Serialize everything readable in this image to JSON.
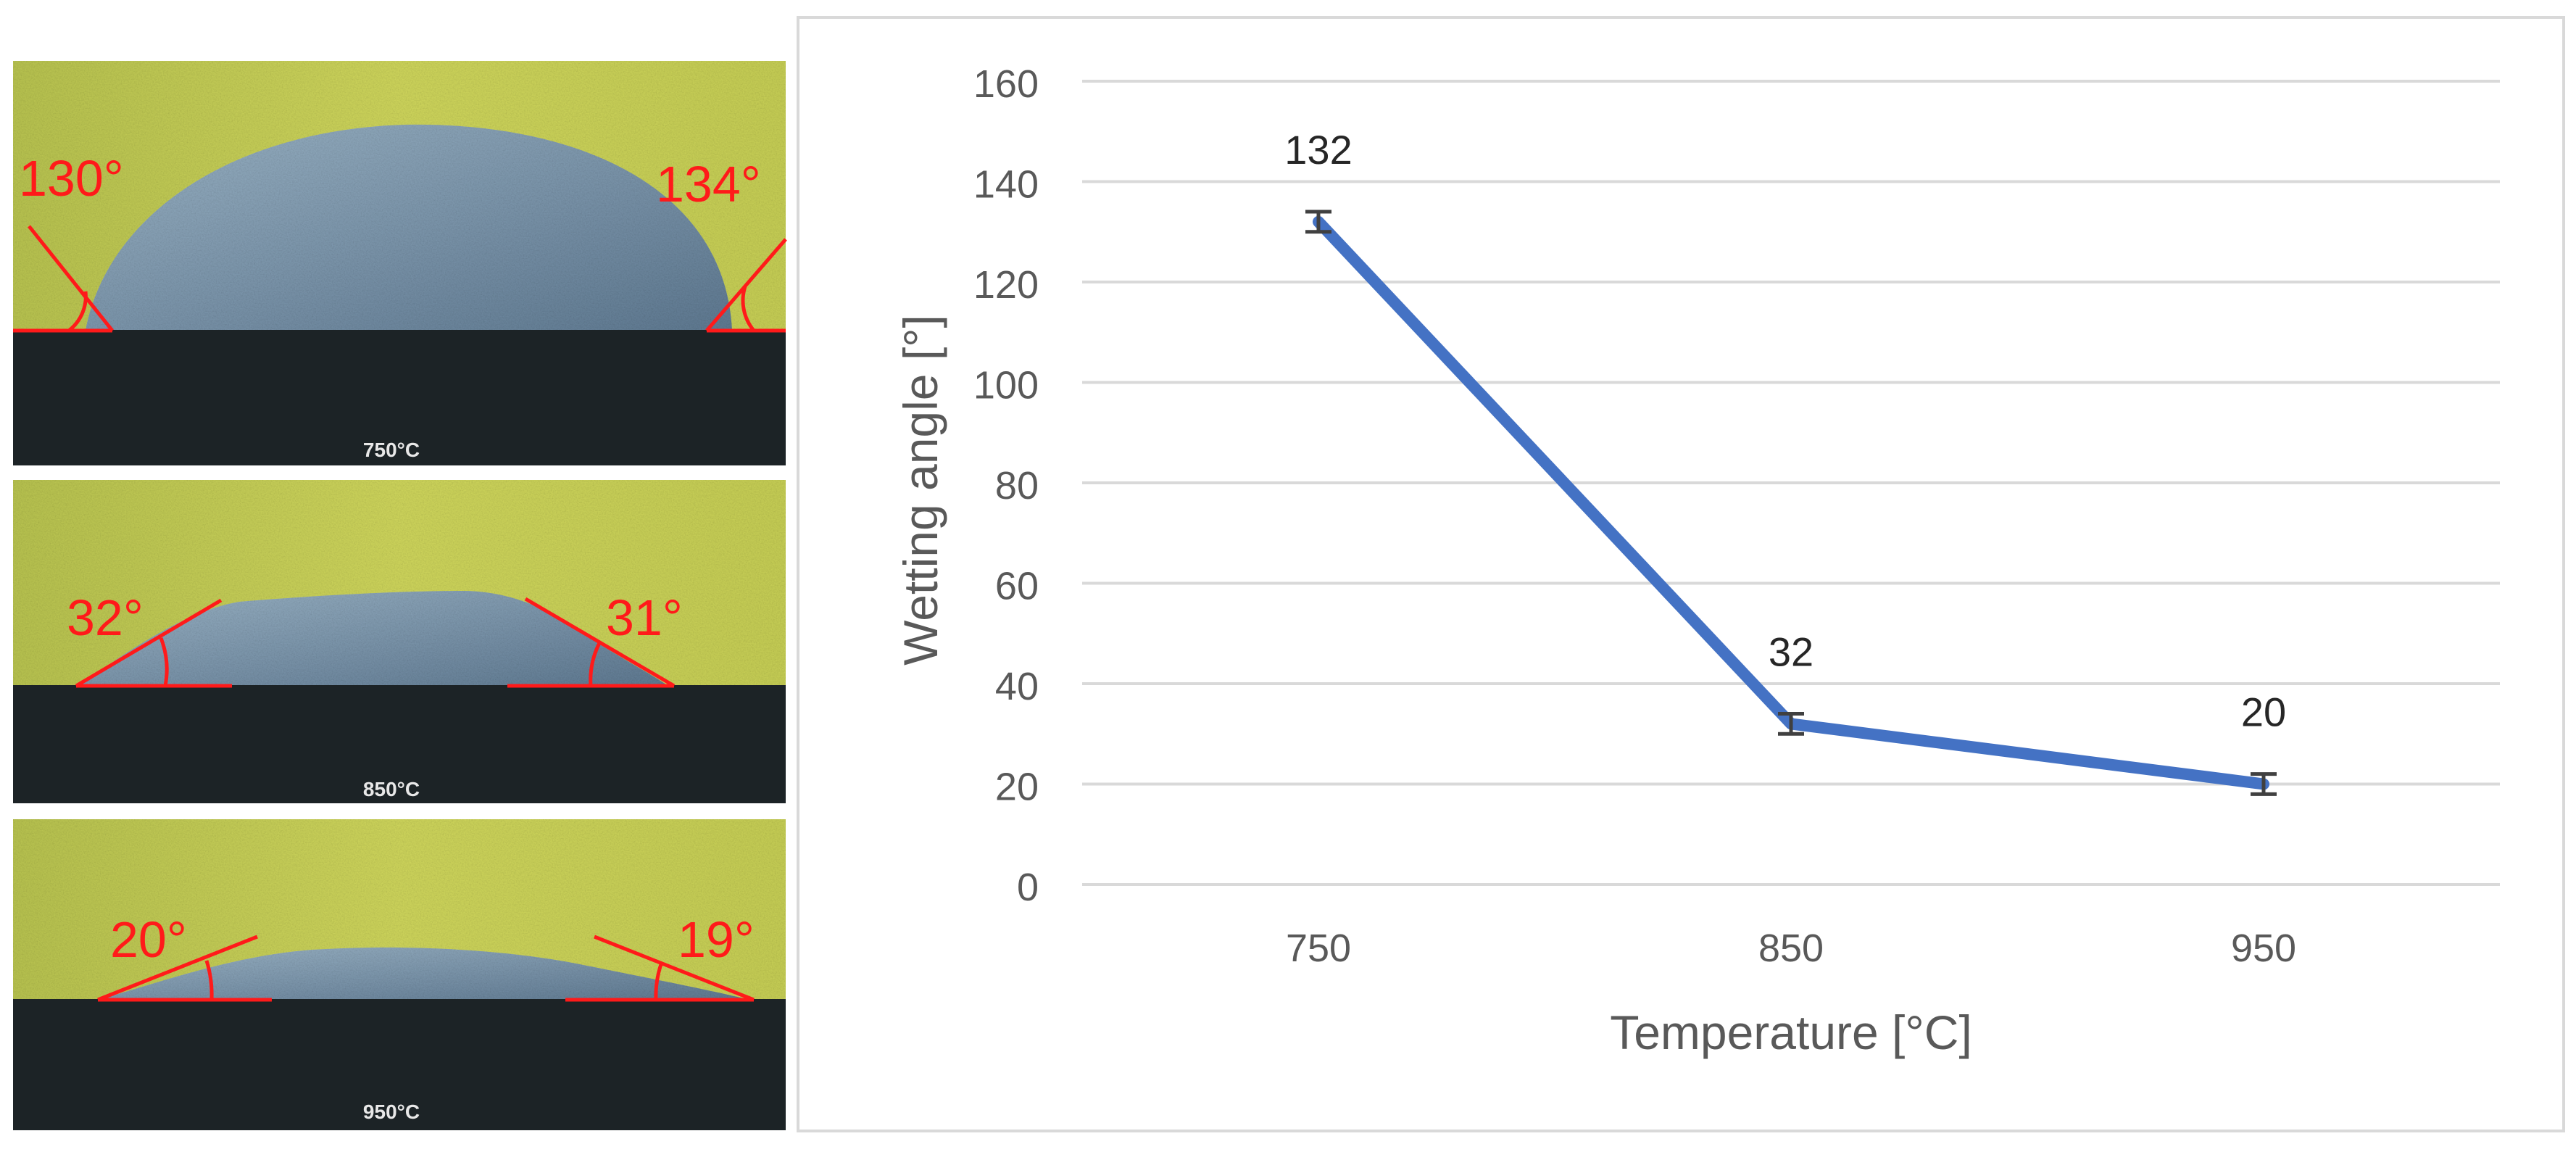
{
  "photos": [
    {
      "temp_label": "750°C",
      "left_angle": "130°",
      "right_angle": "134°"
    },
    {
      "temp_label": "850°C",
      "left_angle": "32°",
      "right_angle": "31°"
    },
    {
      "temp_label": "950°C",
      "left_angle": "20°",
      "right_angle": "19°"
    }
  ],
  "colors": {
    "series": "#4472c4",
    "annotation": "#ff1a1a",
    "substrate": "#1c2326",
    "background_yellow": "#c9cf55",
    "droplet": "#7f9cb3"
  },
  "chart_data": {
    "type": "line",
    "xlabel": "Temperature [°C]",
    "ylabel": "Wetting angle [°]",
    "categories": [
      "750",
      "850",
      "950"
    ],
    "series": [
      {
        "values": [
          132,
          32,
          20
        ],
        "error": [
          2,
          2,
          2
        ]
      }
    ],
    "data_labels": [
      "132",
      "32",
      "20"
    ],
    "ylim": [
      0,
      160
    ],
    "yticks": [
      "0",
      "20",
      "40",
      "60",
      "80",
      "100",
      "120",
      "140",
      "160"
    ],
    "grid": true,
    "legend": "none"
  }
}
